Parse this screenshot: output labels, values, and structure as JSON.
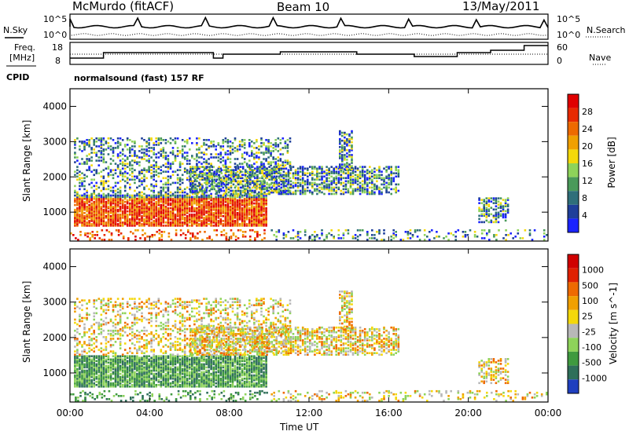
{
  "header": {
    "station": "McMurdo (fitACF)",
    "beam": "Beam 10",
    "date": "13/May/2011",
    "cpid_label": "CPID",
    "cpid_value": "normalsound (fast) 157 RF"
  },
  "status_panels": {
    "nsky_label": "N.Sky",
    "nsky_ticks": [
      "10^5",
      "10^0"
    ],
    "nsearch_label": "N.Search",
    "nsearch_ticks": [
      "10^5",
      "10^0"
    ],
    "freq_label_line1": "Freq.",
    "freq_label_line2": "[MHz]",
    "freq_ticks": [
      "18",
      "8"
    ],
    "nave_label": "Nave",
    "nave_ticks": [
      "60",
      "0"
    ]
  },
  "chart_data": [
    {
      "type": "heatmap",
      "title": "",
      "xlabel": "Time UT",
      "ylabel": "Slant Range [km]",
      "x_ticks": [
        "00:00",
        "04:00",
        "08:00",
        "12:00",
        "16:00",
        "20:00",
        "00:00"
      ],
      "y_ticks": [
        "1000",
        "2000",
        "3000",
        "4000"
      ],
      "xlim": [
        0,
        24
      ],
      "ylim": [
        180,
        4500
      ],
      "colorbar": {
        "label": "Power [dB]",
        "ticks": [
          "4",
          "8",
          "12",
          "16",
          "20",
          "24",
          "28"
        ],
        "colors": [
          "#1a23ff",
          "#1f3f9a",
          "#2f6f7a",
          "#4a9a5a",
          "#8ed35a",
          "#f4d80a",
          "#f0a000",
          "#ee6a00",
          "#e82a00",
          "#e00000"
        ]
      }
    },
    {
      "type": "heatmap",
      "title": "",
      "xlabel": "Time UT",
      "ylabel": "Slant Range [km]",
      "x_ticks": [
        "00:00",
        "04:00",
        "08:00",
        "12:00",
        "16:00",
        "20:00",
        "00:00"
      ],
      "y_ticks": [
        "1000",
        "2000",
        "3000",
        "4000"
      ],
      "xlim": [
        0,
        24
      ],
      "ylim": [
        180,
        4500
      ],
      "colorbar": {
        "label": "Velocity [m s^-1]",
        "ticks": [
          "1000",
          "500",
          "100",
          "25",
          "-25",
          "-100",
          "-500",
          "-1000"
        ],
        "colors": [
          "#1f3fbf",
          "#2f6f5a",
          "#3f9a3f",
          "#8ed35a",
          "#b8b8b8",
          "#f4d80a",
          "#f0a000",
          "#ee6a00",
          "#e02000",
          "#d00000"
        ]
      }
    }
  ],
  "footer": {
    "time_label": "Time UT"
  }
}
